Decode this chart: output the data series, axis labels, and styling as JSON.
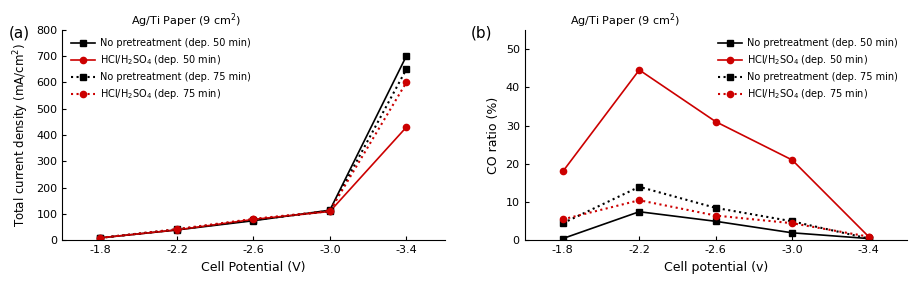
{
  "x_values": [
    -1.8,
    -2.2,
    -2.6,
    -3.0,
    -3.4
  ],
  "a_no_pre_50": [
    10,
    40,
    75,
    115,
    700
  ],
  "a_hcl_50": [
    10,
    40,
    80,
    110,
    430
  ],
  "a_no_pre_75": [
    10,
    42,
    78,
    112,
    650
  ],
  "a_hcl_75": [
    10,
    43,
    82,
    112,
    600
  ],
  "b_no_pre_50": [
    0.5,
    7.5,
    5.0,
    2.0,
    0.5
  ],
  "b_hcl_50": [
    18.0,
    44.5,
    31.0,
    21.0,
    1.0
  ],
  "b_no_pre_75": [
    4.5,
    14.0,
    8.5,
    5.0,
    0.5
  ],
  "b_hcl_75": [
    5.5,
    10.5,
    6.5,
    4.5,
    1.0
  ],
  "color_black": "#000000",
  "color_red": "#cc0000",
  "label_no_pre_50": "No pretreatment (dep. 50 min)",
  "label_hcl_50": "HCl/H$_2$SO$_4$ (dep. 50 min)",
  "label_no_pre_75": "No pretreatment (dep. 75 min)",
  "label_hcl_75": "HCl/H$_2$SO$_4$ (dep. 75 min)",
  "title_a": "Ag/Ti Paper (9 cm$^2$)",
  "title_b": "Ag/Ti Paper (9 cm$^{2}$)",
  "xlabel_a": "Cell Potential (V)",
  "ylabel_a": "Total current density (mA/cm$^2$)",
  "xlabel_b": "Cell potential (v)",
  "ylabel_b": "CO ratio (%)",
  "ylim_a": [
    0,
    800
  ],
  "yticks_a": [
    0,
    100,
    200,
    300,
    400,
    500,
    600,
    700,
    800
  ],
  "ylim_b": [
    0,
    55
  ],
  "yticks_b": [
    0,
    10,
    20,
    30,
    40,
    50
  ],
  "xlim_left": -1.6,
  "xlim_right": -3.6,
  "xticks": [
    -1.8,
    -2.2,
    -2.6,
    -3.0,
    -3.4
  ],
  "panel_a_label": "(a)",
  "panel_b_label": "(b)"
}
